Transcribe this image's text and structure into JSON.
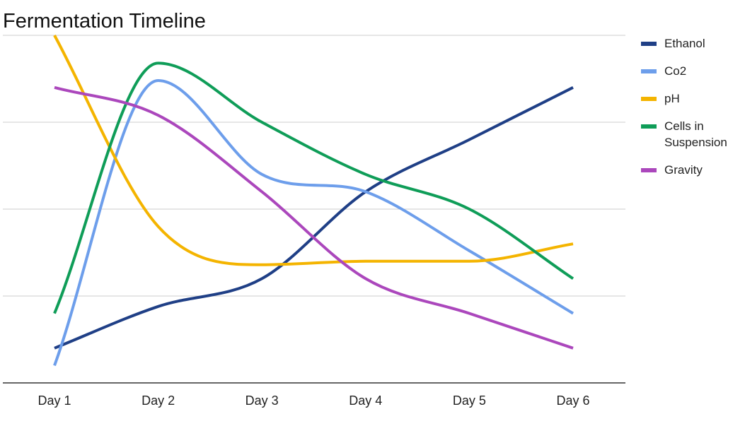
{
  "chart_data": {
    "type": "line",
    "title": "Fermentation Timeline",
    "xlabel": "",
    "ylabel": "",
    "categories": [
      "Day 1",
      "Day 2",
      "Day 3",
      "Day 4",
      "Day 5",
      "Day 6"
    ],
    "ylim": [
      0,
      100
    ],
    "grid": true,
    "y_tick_labels_shown": false,
    "legend_position": "right",
    "smooth": true,
    "series": [
      {
        "name": "Ethanol",
        "color": "#1f3f86",
        "values": [
          10,
          22,
          30,
          55,
          70,
          85
        ]
      },
      {
        "name": "Co2",
        "color": "#6d9eeb",
        "values": [
          5,
          87,
          60,
          55,
          38,
          20
        ]
      },
      {
        "name": "pH",
        "color": "#f4b400",
        "values": [
          100,
          45,
          34,
          35,
          35,
          40
        ]
      },
      {
        "name": "Cells in Suspension",
        "color": "#0f9d58",
        "values": [
          20,
          92,
          75,
          60,
          50,
          30
        ]
      },
      {
        "name": "Gravity",
        "color": "#ab47bc",
        "values": [
          85,
          77,
          55,
          30,
          20,
          10
        ]
      }
    ]
  }
}
